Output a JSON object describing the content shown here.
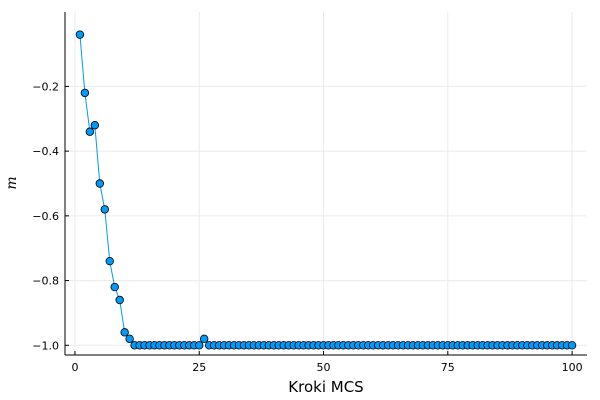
{
  "chart_data": {
    "type": "line",
    "title": "",
    "xlabel": "Kroki MCS",
    "ylabel": "m",
    "xlim": [
      -2,
      103
    ],
    "ylim": [
      -1.03,
      0.03
    ],
    "xticks": [
      0,
      25,
      50,
      75,
      100
    ],
    "xtick_labels": [
      "0",
      "25",
      "50",
      "75",
      "100"
    ],
    "yticks": [
      -0.2,
      -0.4,
      -0.6,
      -0.8,
      -1.0
    ],
    "ytick_labels": [
      "−0.2",
      "−0.4",
      "−0.6",
      "−0.8",
      "−1.0"
    ],
    "grid": true,
    "legend": "none",
    "colors": {
      "series": "#009AFA",
      "marker_edge": "#000000",
      "grid": "#EBEBEB",
      "axis": "#000000"
    },
    "series": [
      {
        "marker": "circle",
        "x": [
          1,
          2,
          3,
          4,
          5,
          6,
          7,
          8,
          9,
          10,
          11,
          12,
          13,
          14,
          15,
          16,
          17,
          18,
          19,
          20,
          21,
          22,
          23,
          24,
          25,
          26,
          27,
          28,
          29,
          30,
          31,
          32,
          33,
          34,
          35,
          36,
          37,
          38,
          39,
          40,
          41,
          42,
          43,
          44,
          45,
          46,
          47,
          48,
          49,
          50,
          51,
          52,
          53,
          54,
          55,
          56,
          57,
          58,
          59,
          60,
          61,
          62,
          63,
          64,
          65,
          66,
          67,
          68,
          69,
          70,
          71,
          72,
          73,
          74,
          75,
          76,
          77,
          78,
          79,
          80,
          81,
          82,
          83,
          84,
          85,
          86,
          87,
          88,
          89,
          90,
          91,
          92,
          93,
          94,
          95,
          96,
          97,
          98,
          99,
          100
        ],
        "y": [
          -0.04,
          -0.22,
          -0.34,
          -0.32,
          -0.5,
          -0.58,
          -0.74,
          -0.82,
          -0.86,
          -0.96,
          -0.98,
          -1.0,
          -1.0,
          -1.0,
          -1.0,
          -1.0,
          -1.0,
          -1.0,
          -1.0,
          -1.0,
          -1.0,
          -1.0,
          -1.0,
          -1.0,
          -1.0,
          -0.98,
          -1.0,
          -1.0,
          -1.0,
          -1.0,
          -1.0,
          -1.0,
          -1.0,
          -1.0,
          -1.0,
          -1.0,
          -1.0,
          -1.0,
          -1.0,
          -1.0,
          -1.0,
          -1.0,
          -1.0,
          -1.0,
          -1.0,
          -1.0,
          -1.0,
          -1.0,
          -1.0,
          -1.0,
          -1.0,
          -1.0,
          -1.0,
          -1.0,
          -1.0,
          -1.0,
          -1.0,
          -1.0,
          -1.0,
          -1.0,
          -1.0,
          -1.0,
          -1.0,
          -1.0,
          -1.0,
          -1.0,
          -1.0,
          -1.0,
          -1.0,
          -1.0,
          -1.0,
          -1.0,
          -1.0,
          -1.0,
          -1.0,
          -1.0,
          -1.0,
          -1.0,
          -1.0,
          -1.0,
          -1.0,
          -1.0,
          -1.0,
          -1.0,
          -1.0,
          -1.0,
          -1.0,
          -1.0,
          -1.0,
          -1.0,
          -1.0,
          -1.0,
          -1.0,
          -1.0,
          -1.0,
          -1.0,
          -1.0,
          -1.0,
          -1.0,
          -1.0
        ]
      }
    ]
  }
}
